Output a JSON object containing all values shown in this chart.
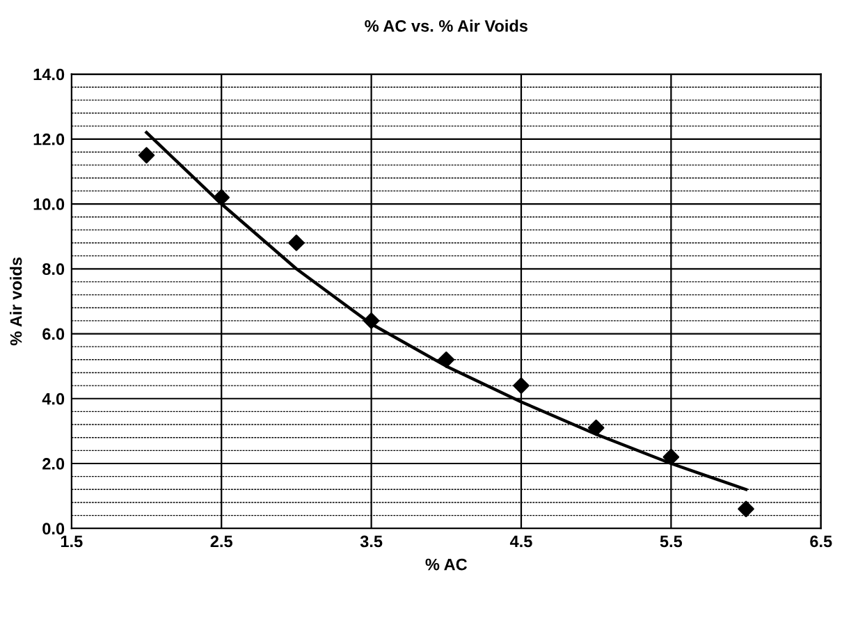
{
  "chart_data": {
    "type": "scatter",
    "title": "% AC vs. % Air Voids",
    "xlabel": "% AC",
    "ylabel": "% Air voids",
    "xlim": [
      1.5,
      6.5
    ],
    "ylim": [
      0,
      14
    ],
    "xticks": [
      1.5,
      2.5,
      3.5,
      4.5,
      5.5,
      6.5
    ],
    "yticks": [
      {
        "value": 0,
        "label": "0.0"
      },
      {
        "value": 0.4,
        "label": null
      },
      {
        "value": 0.8,
        "label": null
      },
      {
        "value": 1.2,
        "label": null
      },
      {
        "value": 1.6,
        "label": null
      },
      {
        "value": 2,
        "label": "2.0"
      },
      {
        "value": 2.4,
        "label": null
      },
      {
        "value": 2.8,
        "label": null
      },
      {
        "value": 3.2,
        "label": null
      },
      {
        "value": 3.6,
        "label": null
      },
      {
        "value": 4,
        "label": "4.0"
      },
      {
        "value": 4.4,
        "label": null
      },
      {
        "value": 4.8,
        "label": null
      },
      {
        "value": 5.2,
        "label": null
      },
      {
        "value": 5.6,
        "label": null
      },
      {
        "value": 6,
        "label": "6.0"
      },
      {
        "value": 6.4,
        "label": null
      },
      {
        "value": 6.8,
        "label": null
      },
      {
        "value": 7.2,
        "label": null
      },
      {
        "value": 7.6,
        "label": null
      },
      {
        "value": 8,
        "label": "8.0"
      },
      {
        "value": 8.4,
        "label": null
      },
      {
        "value": 8.8,
        "label": null
      },
      {
        "value": 9.2,
        "label": null
      },
      {
        "value": 9.6,
        "label": null
      },
      {
        "value": 10,
        "label": "10.0"
      },
      {
        "value": 10.4,
        "label": null
      },
      {
        "value": 10.8,
        "label": null
      },
      {
        "value": 11.2,
        "label": null
      },
      {
        "value": 11.6,
        "label": null
      },
      {
        "value": 12,
        "label": "12.0"
      },
      {
        "value": 12.4,
        "label": null
      },
      {
        "value": 12.8,
        "label": null
      },
      {
        "value": 13.2,
        "label": null
      },
      {
        "value": 13.6,
        "label": null
      },
      {
        "value": 14,
        "label": "14.0"
      }
    ],
    "grid": true,
    "legend": false,
    "series": [
      {
        "color": "#000000",
        "marker": "diamond",
        "x": [
          2.0,
          2.5,
          3.0,
          3.5,
          4.0,
          4.5,
          5.0,
          5.5,
          6.0
        ],
        "values": [
          11.5,
          10.2,
          8.8,
          6.4,
          5.2,
          4.4,
          3.1,
          2.2,
          0.6
        ]
      },
      {
        "type": "line",
        "color": "#000000",
        "marker": "none",
        "line_style": "solid",
        "x": [
          2.0,
          2.5,
          3.0,
          3.5,
          4.0,
          4.5,
          5.0,
          5.5,
          6.0
        ],
        "values": [
          12.2,
          10.0,
          8.0,
          6.3,
          5.0,
          3.9,
          2.9,
          2.0,
          1.2
        ]
      }
    ]
  }
}
